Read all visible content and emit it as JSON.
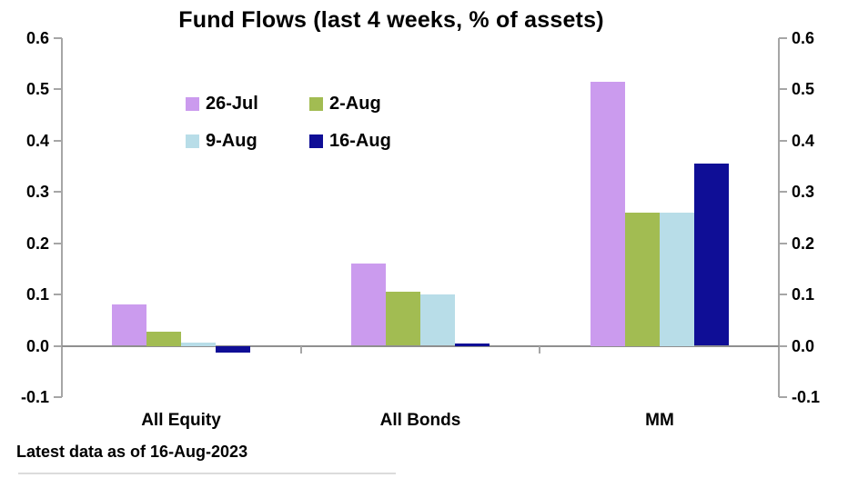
{
  "chart_data": {
    "type": "bar",
    "title": "Fund Flows (last 4 weeks, % of assets)",
    "categories": [
      "All Equity",
      "All Bonds",
      "MM"
    ],
    "series": [
      {
        "name": "26-Jul",
        "color": "#cb9bee",
        "values": [
          0.08,
          0.16,
          0.515
        ]
      },
      {
        "name": "2-Aug",
        "color": "#a2bc52",
        "values": [
          0.028,
          0.105,
          0.26
        ]
      },
      {
        "name": "9-Aug",
        "color": "#b8dde8",
        "values": [
          0.007,
          0.1,
          0.26
        ]
      },
      {
        "name": "16-Aug",
        "color": "#0f0e96",
        "values": [
          -0.012,
          0.005,
          0.355
        ]
      }
    ],
    "ylim": [
      -0.1,
      0.6
    ],
    "ytick_step": 0.1,
    "ytick_labels": [
      "0.6",
      "0.5",
      "0.4",
      "0.3",
      "0.2",
      "0.1",
      "0.0",
      "-0.1"
    ],
    "dual_y_axis": true,
    "grid": false,
    "legend_position": "top-left-inside",
    "footnote": "Latest data as of 16-Aug-2023",
    "axis_color": "#a6a6a6",
    "zero_line_color": "#8f8f8f",
    "text_color": "#000000",
    "background_color": "#ffffff"
  }
}
